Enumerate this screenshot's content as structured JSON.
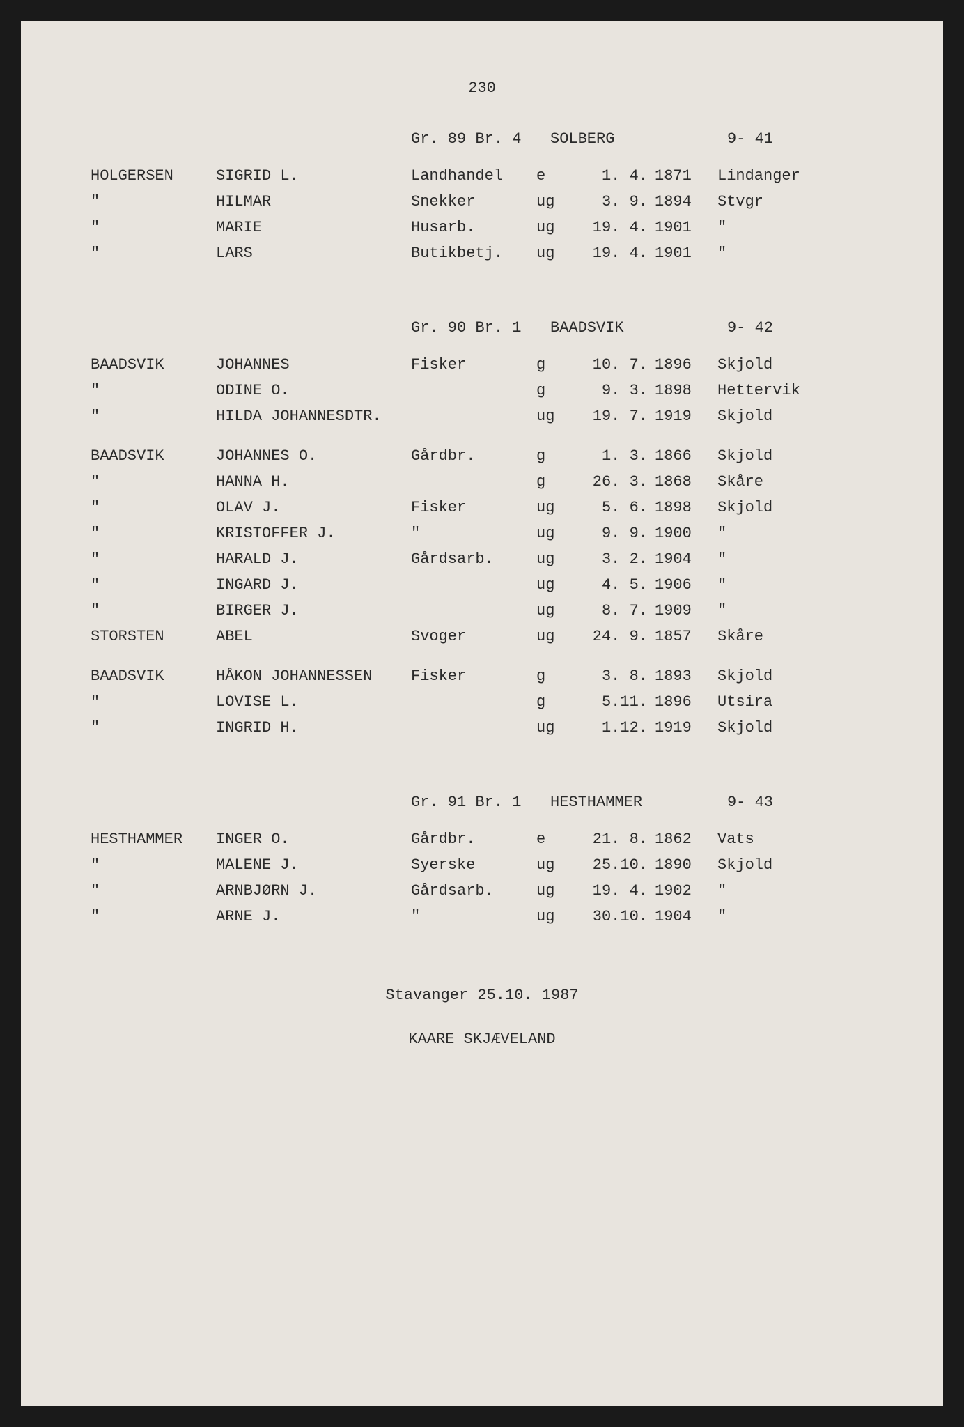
{
  "page_number": "230",
  "sections": [
    {
      "header": {
        "gr_br": "Gr. 89 Br. 4",
        "place": "SOLBERG",
        "ref": "9- 41"
      },
      "groups": [
        {
          "rows": [
            {
              "surname": "HOLGERSEN",
              "given": "SIGRID L.",
              "occupation": "Landhandel",
              "status": "e",
              "date": "1. 4.",
              "year": "1871",
              "origin": "Lindanger"
            },
            {
              "surname": "\"",
              "given": "HILMAR",
              "occupation": "Snekker",
              "status": "ug",
              "date": "3. 9.",
              "year": "1894",
              "origin": "Stvgr"
            },
            {
              "surname": "\"",
              "given": "MARIE",
              "occupation": "Husarb.",
              "status": "ug",
              "date": "19. 4.",
              "year": "1901",
              "origin": "\""
            },
            {
              "surname": "\"",
              "given": "LARS",
              "occupation": "Butikbetj.",
              "status": "ug",
              "date": "19. 4.",
              "year": "1901",
              "origin": "\""
            }
          ]
        }
      ]
    },
    {
      "header": {
        "gr_br": "Gr. 90 Br. 1",
        "place": "BAADSVIK",
        "ref": "9- 42"
      },
      "groups": [
        {
          "rows": [
            {
              "surname": "BAADSVIK",
              "given": "JOHANNES",
              "occupation": "Fisker",
              "status": "g",
              "date": "10. 7.",
              "year": "1896",
              "origin": "Skjold"
            },
            {
              "surname": "\"",
              "given": "ODINE O.",
              "occupation": "",
              "status": "g",
              "date": "9. 3.",
              "year": "1898",
              "origin": "Hettervik"
            },
            {
              "surname": "\"",
              "given": "HILDA JOHANNESDTR.",
              "occupation": "",
              "status": "ug",
              "date": "19. 7.",
              "year": "1919",
              "origin": "Skjold"
            }
          ]
        },
        {
          "rows": [
            {
              "surname": "BAADSVIK",
              "given": "JOHANNES O.",
              "occupation": "Gårdbr.",
              "status": "g",
              "date": "1. 3.",
              "year": "1866",
              "origin": "Skjold"
            },
            {
              "surname": "\"",
              "given": "HANNA H.",
              "occupation": "",
              "status": "g",
              "date": "26. 3.",
              "year": "1868",
              "origin": "Skåre"
            },
            {
              "surname": "\"",
              "given": "OLAV J.",
              "occupation": "Fisker",
              "status": "ug",
              "date": "5. 6.",
              "year": "1898",
              "origin": "Skjold"
            },
            {
              "surname": "\"",
              "given": "KRISTOFFER J.",
              "occupation": "\"",
              "status": "ug",
              "date": "9. 9.",
              "year": "1900",
              "origin": "\""
            },
            {
              "surname": "\"",
              "given": "HARALD J.",
              "occupation": "Gårdsarb.",
              "status": "ug",
              "date": "3. 2.",
              "year": "1904",
              "origin": "\""
            },
            {
              "surname": "\"",
              "given": "INGARD J.",
              "occupation": "",
              "status": "ug",
              "date": "4. 5.",
              "year": "1906",
              "origin": "\""
            },
            {
              "surname": "\"",
              "given": "BIRGER J.",
              "occupation": "",
              "status": "ug",
              "date": "8. 7.",
              "year": "1909",
              "origin": "\""
            },
            {
              "surname": "STORSTEN",
              "given": "ABEL",
              "occupation": "Svoger",
              "status": "ug",
              "date": "24. 9.",
              "year": "1857",
              "origin": "Skåre"
            }
          ]
        },
        {
          "rows": [
            {
              "surname": "BAADSVIK",
              "given": "HÅKON JOHANNESSEN",
              "occupation": "Fisker",
              "status": "g",
              "date": "3. 8.",
              "year": "1893",
              "origin": "Skjold"
            },
            {
              "surname": "\"",
              "given": "LOVISE L.",
              "occupation": "",
              "status": "g",
              "date": "5.11.",
              "year": "1896",
              "origin": "Utsira"
            },
            {
              "surname": "\"",
              "given": "INGRID H.",
              "occupation": "",
              "status": "ug",
              "date": "1.12.",
              "year": "1919",
              "origin": "Skjold"
            }
          ]
        }
      ]
    },
    {
      "header": {
        "gr_br": "Gr. 91 Br. 1",
        "place": "HESTHAMMER",
        "ref": "9- 43"
      },
      "groups": [
        {
          "rows": [
            {
              "surname": "HESTHAMMER",
              "given": "INGER O.",
              "occupation": "Gårdbr.",
              "status": "e",
              "date": "21. 8.",
              "year": "1862",
              "origin": "Vats"
            },
            {
              "surname": "\"",
              "given": "MALENE J.",
              "occupation": "Syerske",
              "status": "ug",
              "date": "25.10.",
              "year": "1890",
              "origin": "Skjold"
            },
            {
              "surname": "\"",
              "given": "ARNBJØRN J.",
              "occupation": "Gårdsarb.",
              "status": "ug",
              "date": "19. 4.",
              "year": "1902",
              "origin": "\""
            },
            {
              "surname": "\"",
              "given": "ARNE J.",
              "occupation": "\"",
              "status": "ug",
              "date": "30.10.",
              "year": "1904",
              "origin": "\""
            }
          ]
        }
      ]
    }
  ],
  "footer": {
    "line1": "Stavanger 25.10. 1987",
    "line2": "KAARE SKJÆVELAND"
  },
  "style": {
    "background_color": "#e8e4de",
    "text_color": "#2a2a2a",
    "font_family": "Courier New",
    "font_size_pt": 16
  }
}
